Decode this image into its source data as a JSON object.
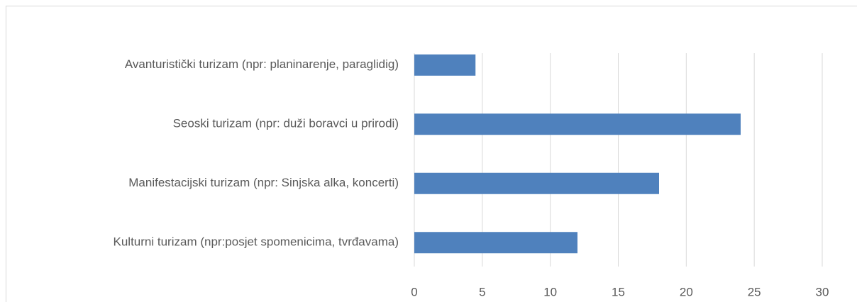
{
  "chart_data": {
    "type": "bar",
    "orientation": "horizontal",
    "categories": [
      "Avanturistički turizam (npr: planinarenje, paraglidig)",
      "Seoski turizam (npr: duži boravci u prirodi)",
      "Manifestacijski turizam (npr: Sinjska alka, koncerti)",
      "Kulturni turizam (npr:posjet spomenicima, tvrđavama)"
    ],
    "values": [
      4.5,
      24,
      18,
      12
    ],
    "color": "#4f81bd",
    "xlim": [
      0,
      30
    ],
    "xticks": [
      0,
      5,
      10,
      15,
      20,
      25,
      30
    ],
    "grid": true
  }
}
